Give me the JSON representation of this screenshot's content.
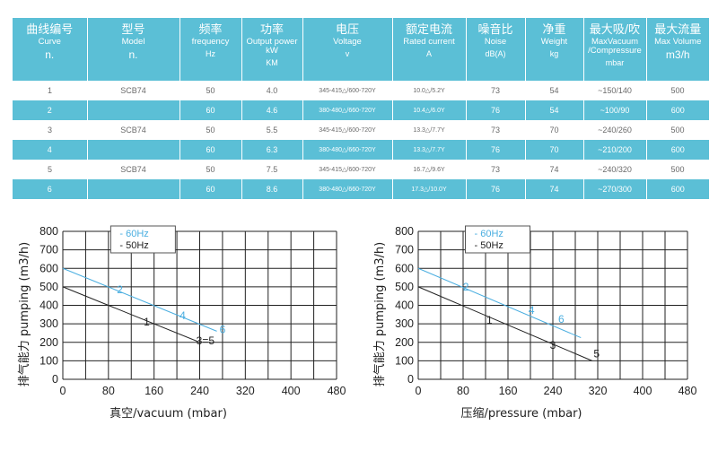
{
  "table": {
    "headers": [
      {
        "zh": "曲线编号",
        "en": "Curve",
        "unit": "n."
      },
      {
        "zh": "型号",
        "en": "Model",
        "unit": "n."
      },
      {
        "zh": "频率",
        "en": "frequency",
        "unit": "Hz"
      },
      {
        "zh": "功率",
        "en": "Output power kW",
        "unit": "KM"
      },
      {
        "zh": "电压",
        "en": "Voltage",
        "unit": "v"
      },
      {
        "zh": "额定电流",
        "en": "Rated current",
        "unit": "A"
      },
      {
        "zh": "噪音比",
        "en": "Noise",
        "unit": "dB(A)"
      },
      {
        "zh": "净重",
        "en": "Weight",
        "unit": "kg"
      },
      {
        "zh": "最大吸/吹",
        "en": "MaxVacuum /Compressure",
        "unit": "mbar"
      },
      {
        "zh": "最大流量",
        "en": "Max Volume",
        "unit": "m3/h"
      }
    ],
    "rows": [
      [
        "1",
        "SCB74",
        "50",
        "4.0",
        "345-415△/600-720Y",
        "10.0△/5.2Y",
        "73",
        "54",
        "~150/140",
        "500"
      ],
      [
        "2",
        "",
        "60",
        "4.6",
        "380-480△/660-720Y",
        "10.4△/6.0Y",
        "76",
        "54",
        "~100/90",
        "600"
      ],
      [
        "3",
        "SCB74",
        "50",
        "5.5",
        "345-415△/600-720Y",
        "13.3△/7.7Y",
        "73",
        "70",
        "~240/260",
        "500"
      ],
      [
        "4",
        "",
        "60",
        "6.3",
        "380-480△/660-720Y",
        "13.3△/7.7Y",
        "76",
        "70",
        "~210/200",
        "600"
      ],
      [
        "5",
        "SCB74",
        "50",
        "7.5",
        "345-415△/600-720Y",
        "16.7△/9.6Y",
        "73",
        "74",
        "~240/320",
        "500"
      ],
      [
        "6",
        "",
        "60",
        "8.6",
        "380-480△/660-720Y",
        "17.3△/10.0Y",
        "76",
        "74",
        "~270/300",
        "600"
      ]
    ]
  },
  "colors": {
    "blue": "#5bbfd6",
    "line60": "#4aaee0",
    "line50": "#222222"
  },
  "chart_data": [
    {
      "type": "line",
      "xlabel": "真空/vacuum (mbar)",
      "ylabel": "排气能力 pumping (m3/h)",
      "xlim": [
        0,
        480
      ],
      "ylim": [
        0,
        800
      ],
      "xticks": [
        0,
        80,
        160,
        240,
        320,
        400,
        480
      ],
      "yticks": [
        0,
        100,
        200,
        300,
        400,
        500,
        600,
        700,
        800
      ],
      "legend": [
        "- 60Hz",
        "- 50Hz"
      ],
      "series": [
        {
          "name": "- 60Hz",
          "color": "#4aaee0",
          "x": [
            0,
            270
          ],
          "y": [
            600,
            260
          ]
        },
        {
          "name": "- 50Hz",
          "color": "#222222",
          "x": [
            0,
            240
          ],
          "y": [
            500,
            200
          ]
        }
      ],
      "point_labels": [
        {
          "text": "2",
          "x": 100,
          "y": 465,
          "color": "#4aaee0"
        },
        {
          "text": "4",
          "x": 210,
          "y": 325,
          "color": "#4aaee0"
        },
        {
          "text": "6",
          "x": 280,
          "y": 250,
          "color": "#4aaee0"
        },
        {
          "text": "1",
          "x": 147,
          "y": 290,
          "color": "#222222"
        },
        {
          "text": "3=5",
          "x": 250,
          "y": 190,
          "color": "#222222"
        }
      ]
    },
    {
      "type": "line",
      "xlabel": "压缩/pressure (mbar)",
      "ylabel": "排气能力 pumping (m3/h)",
      "xlim": [
        0,
        480
      ],
      "ylim": [
        0,
        800
      ],
      "xticks": [
        0,
        80,
        160,
        240,
        320,
        400,
        480
      ],
      "yticks": [
        0,
        100,
        200,
        300,
        400,
        500,
        600,
        700,
        800
      ],
      "legend": [
        "- 60Hz",
        "- 50Hz"
      ],
      "series": [
        {
          "name": "- 60Hz",
          "color": "#4aaee0",
          "x": [
            0,
            290
          ],
          "y": [
            600,
            225
          ]
        },
        {
          "name": "- 50Hz",
          "color": "#222222",
          "x": [
            0,
            310
          ],
          "y": [
            500,
            100
          ]
        }
      ],
      "point_labels": [
        {
          "text": "2",
          "x": 85,
          "y": 480,
          "color": "#4aaee0"
        },
        {
          "text": "4",
          "x": 202,
          "y": 355,
          "color": "#4aaee0"
        },
        {
          "text": "6",
          "x": 255,
          "y": 305,
          "color": "#4aaee0"
        },
        {
          "text": "1",
          "x": 127,
          "y": 300,
          "color": "#222222"
        },
        {
          "text": "3",
          "x": 240,
          "y": 165,
          "color": "#222222"
        },
        {
          "text": "5",
          "x": 318,
          "y": 120,
          "color": "#222222"
        }
      ]
    }
  ]
}
